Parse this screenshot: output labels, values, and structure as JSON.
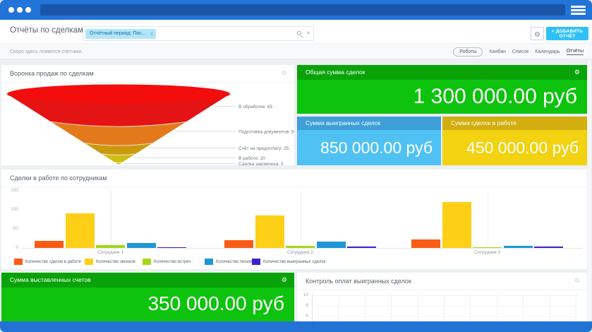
{
  "icons": {
    "gear": "⚙",
    "star": "☆",
    "close": "×",
    "plus_menu": "hamburger",
    "search": "magnifier"
  },
  "header": {
    "title": "Отчёты по сделкам",
    "filter_chip": "Отчётный период: Пос...",
    "add_button": "+ ДОБАВИТЬ ОТЧЁТ"
  },
  "subheader": {
    "hint": "Скоро здесь появятся счетчики",
    "tabs": [
      "Роботы",
      "Канбан",
      "Список",
      "Календарь",
      "Отчёты"
    ],
    "active_tab": "Отчёты"
  },
  "cards": {
    "funnel_title": "Воронка продаж по сделкам",
    "total": {
      "title": "Общая сумма сделок",
      "value": "1 300 000.00 руб"
    },
    "won": {
      "title": "Сумма выигранных сделок",
      "value": "850 000.00 руб"
    },
    "inwork": {
      "title": "Сумма сделок в работе",
      "value": "450 000.00 руб"
    },
    "employees_title": "Сделки в работе по сотрудникам",
    "invoices": {
      "title": "Сумма выставленных счетов",
      "value": "350 000.00 руб"
    },
    "payments_title": "Контроль оплат выигранных сделок"
  },
  "colors": {
    "topbar": "#2274d8",
    "green_header": "#09a309",
    "green_body": "#0ec30e",
    "blue_header": "#3f9fd8",
    "blue_body": "#4fc2f3",
    "yellow_header": "#d2ae11",
    "yellow_body": "#f2d211",
    "footer": "#2273d3"
  },
  "chart_data": [
    {
      "type": "funnel",
      "title": "Воронка продаж по сделкам",
      "top_color": "#f30d0d",
      "stages": [
        {
          "label": "В обработке",
          "value": 65,
          "color": "#e41414"
        },
        {
          "label": "Подготовка документов",
          "value": 50,
          "color": "#e4791b"
        },
        {
          "label": "Счёт на предоплату",
          "value": 25,
          "color": "#c9990f"
        },
        {
          "label": "В работе",
          "value": 20,
          "color": "#cfbd12"
        },
        {
          "label": "Сделка заключена",
          "value": 5,
          "color": "#b8c20c"
        }
      ]
    },
    {
      "type": "bar",
      "title": "Сделки в работе по сотрудникам",
      "categories": [
        "Сотрудник 1",
        "Сотрудник 2",
        "Сотрудник 3"
      ],
      "series": [
        {
          "name": "Количество сделок в работе",
          "color": "#fc5b16",
          "values": [
            18,
            20,
            22
          ]
        },
        {
          "name": "Количество звонков",
          "color": "#fdd017",
          "values": [
            90,
            85,
            120
          ]
        },
        {
          "name": "Количество встреч",
          "color": "#a2d916",
          "values": [
            7,
            6,
            2
          ]
        },
        {
          "name": "Количество писем",
          "color": "#2196d6",
          "values": [
            13,
            16,
            6
          ]
        },
        {
          "name": "Количество выигранных сделок",
          "color": "#3c22cf",
          "values": [
            2,
            3,
            3
          ]
        }
      ],
      "ylim": [
        0,
        150
      ],
      "yticks": [
        0,
        50,
        100,
        150
      ],
      "legend_position": "bottom",
      "grid": "vertical lines at category centers"
    },
    {
      "type": "bar",
      "title": "Контроль оплат выигранных сделок",
      "categories": [],
      "series": [],
      "yticks_visible": [
        10,
        8,
        6
      ],
      "note": "empty plot, bottom cropped by window edge"
    }
  ]
}
